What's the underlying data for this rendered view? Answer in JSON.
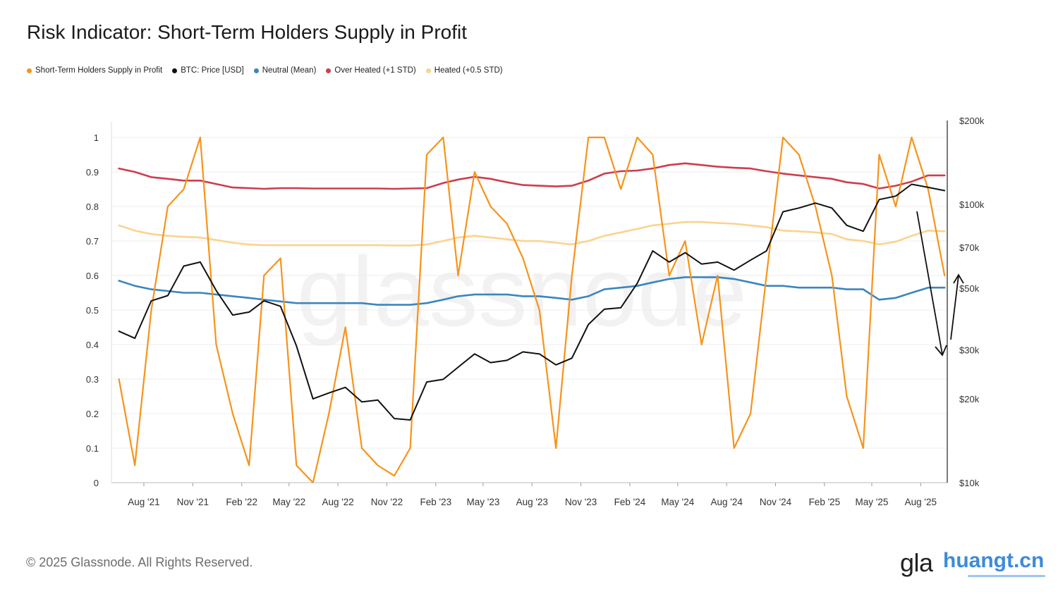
{
  "title": "Risk Indicator: Short-Term Holders Supply in Profit",
  "footer": "© 2025 Glassnode. All Rights Reserved.",
  "watermark": "glassnode",
  "brand": {
    "prefix": "gla",
    "site": "huangt.cn"
  },
  "legend": [
    {
      "label": "Short-Term Holders Supply in Profit",
      "color": "#f7931a"
    },
    {
      "label": "BTC: Price [USD]",
      "color": "#111111"
    },
    {
      "label": "Neutral (Mean)",
      "color": "#3b86bd"
    },
    {
      "label": "Over Heated (+1 STD)",
      "color": "#cc3e4c"
    },
    {
      "label": "Heated (+0.5 STD)",
      "color": "#fbd38d"
    }
  ],
  "chart_data": {
    "type": "line",
    "title": "Risk Indicator: Short-Term Holders Supply in Profit",
    "x_range": [
      "2021-06",
      "2025-09"
    ],
    "x_ticks": [
      "Aug '21",
      "Nov '21",
      "Feb '22",
      "May '22",
      "Aug '22",
      "Nov '22",
      "Feb '23",
      "May '23",
      "Aug '23",
      "Nov '23",
      "Feb '24",
      "May '24",
      "Aug '24",
      "Nov '24",
      "Feb '25",
      "May '25",
      "Aug '25"
    ],
    "y_left": {
      "min": 0,
      "max": 1,
      "ticks": [
        "0",
        "0.1",
        "0.2",
        "0.3",
        "0.4",
        "0.5",
        "0.6",
        "0.7",
        "0.8",
        "0.9",
        "1"
      ]
    },
    "y_right": {
      "scale": "log",
      "min": 10000,
      "max": 200000,
      "ticks": [
        {
          "label": "$10k",
          "value": 10000
        },
        {
          "label": "$20k",
          "value": 20000
        },
        {
          "label": "$30k",
          "value": 30000
        },
        {
          "label": "$50k",
          "value": 50000
        },
        {
          "label": "$70k",
          "value": 70000
        },
        {
          "label": "$100k",
          "value": 100000
        },
        {
          "label": "$200k",
          "value": 200000
        }
      ]
    },
    "x": [
      "2021-06",
      "2021-07",
      "2021-08",
      "2021-09",
      "2021-10",
      "2021-11",
      "2021-12",
      "2022-01",
      "2022-02",
      "2022-03",
      "2022-04",
      "2022-05",
      "2022-06",
      "2022-07",
      "2022-08",
      "2022-09",
      "2022-10",
      "2022-11",
      "2022-12",
      "2023-01",
      "2023-02",
      "2023-03",
      "2023-04",
      "2023-05",
      "2023-06",
      "2023-07",
      "2023-08",
      "2023-09",
      "2023-10",
      "2023-11",
      "2023-12",
      "2024-01",
      "2024-02",
      "2024-03",
      "2024-04",
      "2024-05",
      "2024-06",
      "2024-07",
      "2024-08",
      "2024-09",
      "2024-10",
      "2024-11",
      "2024-12",
      "2025-01",
      "2025-02",
      "2025-03",
      "2025-04",
      "2025-05",
      "2025-06",
      "2025-07",
      "2025-08",
      "2025-09"
    ],
    "series": [
      {
        "name": "Short-Term Holders Supply in Profit",
        "axis": "left",
        "color": "#f7931a",
        "values": [
          0.3,
          0.05,
          0.5,
          0.8,
          0.85,
          1.0,
          0.4,
          0.2,
          0.05,
          0.6,
          0.65,
          0.05,
          0.0,
          0.2,
          0.45,
          0.1,
          0.05,
          0.02,
          0.1,
          0.95,
          1.0,
          0.6,
          0.9,
          0.8,
          0.75,
          0.65,
          0.5,
          0.1,
          0.6,
          1.0,
          1.0,
          0.85,
          1.0,
          0.95,
          0.6,
          0.7,
          0.4,
          0.6,
          0.1,
          0.2,
          0.6,
          1.0,
          0.95,
          0.8,
          0.6,
          0.25,
          0.1,
          0.95,
          0.8,
          1.0,
          0.85,
          0.6
        ]
      },
      {
        "name": "BTC: Price [USD]",
        "axis": "right",
        "color": "#111111",
        "values": [
          35000,
          33000,
          45000,
          47000,
          60000,
          62000,
          49000,
          40000,
          41000,
          45000,
          43000,
          31000,
          20000,
          21000,
          22000,
          19500,
          19800,
          17000,
          16800,
          23000,
          23500,
          26000,
          29000,
          27000,
          27500,
          29500,
          29000,
          26500,
          28000,
          37000,
          42000,
          42500,
          52000,
          68000,
          62000,
          67000,
          61000,
          62000,
          58000,
          63000,
          68000,
          94000,
          97000,
          101000,
          97000,
          84000,
          80000,
          104000,
          107000,
          118000,
          115000,
          112000
        ]
      },
      {
        "name": "Neutral (Mean)",
        "axis": "left",
        "color": "#3b86bd",
        "values": [
          0.585,
          0.57,
          0.56,
          0.555,
          0.55,
          0.55,
          0.545,
          0.54,
          0.535,
          0.53,
          0.525,
          0.52,
          0.52,
          0.52,
          0.52,
          0.52,
          0.515,
          0.515,
          0.515,
          0.52,
          0.53,
          0.54,
          0.545,
          0.545,
          0.545,
          0.54,
          0.54,
          0.535,
          0.53,
          0.54,
          0.56,
          0.565,
          0.57,
          0.58,
          0.59,
          0.595,
          0.595,
          0.595,
          0.59,
          0.58,
          0.57,
          0.57,
          0.565,
          0.565,
          0.565,
          0.56,
          0.56,
          0.53,
          0.535,
          0.55,
          0.565,
          0.565
        ]
      },
      {
        "name": "Over Heated (+1 STD)",
        "axis": "left",
        "color": "#cc3e4c",
        "values": [
          0.91,
          0.9,
          0.885,
          0.88,
          0.875,
          0.875,
          0.865,
          0.855,
          0.853,
          0.851,
          0.853,
          0.853,
          0.852,
          0.852,
          0.852,
          0.852,
          0.852,
          0.851,
          0.852,
          0.853,
          0.868,
          0.878,
          0.886,
          0.88,
          0.87,
          0.862,
          0.86,
          0.858,
          0.86,
          0.875,
          0.895,
          0.902,
          0.904,
          0.91,
          0.92,
          0.925,
          0.92,
          0.915,
          0.912,
          0.91,
          0.902,
          0.895,
          0.89,
          0.885,
          0.88,
          0.87,
          0.865,
          0.852,
          0.86,
          0.872,
          0.89,
          0.89
        ]
      },
      {
        "name": "Heated (+0.5 STD)",
        "axis": "left",
        "color": "#fbd38d",
        "values": [
          0.745,
          0.73,
          0.72,
          0.715,
          0.712,
          0.71,
          0.703,
          0.695,
          0.69,
          0.688,
          0.688,
          0.688,
          0.688,
          0.688,
          0.688,
          0.688,
          0.688,
          0.687,
          0.687,
          0.69,
          0.7,
          0.71,
          0.715,
          0.71,
          0.705,
          0.7,
          0.7,
          0.695,
          0.69,
          0.7,
          0.715,
          0.725,
          0.735,
          0.745,
          0.75,
          0.755,
          0.755,
          0.752,
          0.75,
          0.745,
          0.74,
          0.73,
          0.728,
          0.725,
          0.72,
          0.705,
          0.7,
          0.69,
          0.698,
          0.715,
          0.73,
          0.728
        ]
      }
    ],
    "annotations": [
      {
        "type": "arrow",
        "direction": "down",
        "color": "#111111",
        "x_from": "2025-07",
        "x_to": "2025-09"
      },
      {
        "type": "arrow",
        "direction": "up",
        "color": "#111111",
        "x_from": "2025-09",
        "x_to": "2025-09"
      }
    ],
    "grid": true,
    "legend_position": "top-left"
  }
}
